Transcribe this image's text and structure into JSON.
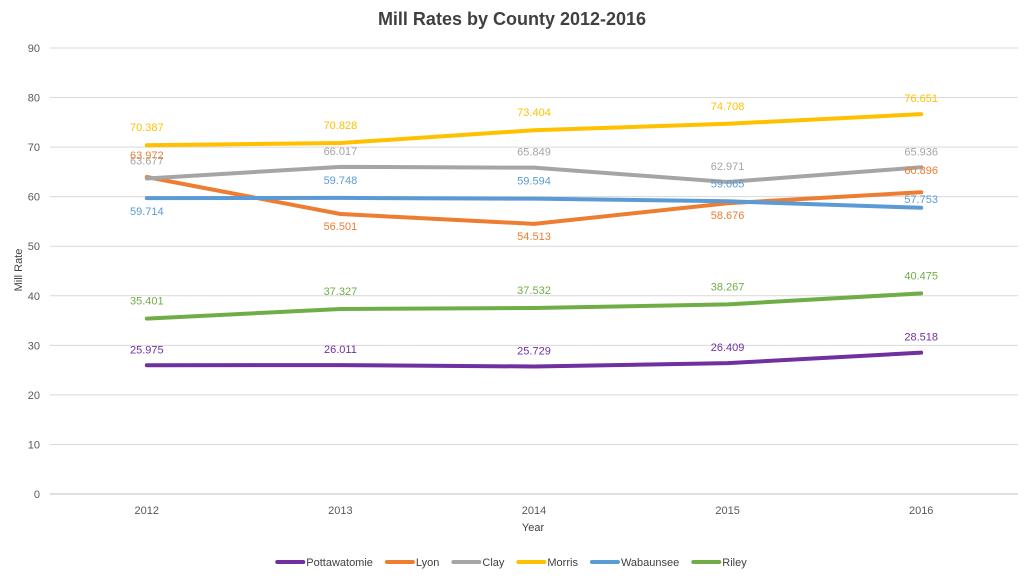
{
  "chart_data": {
    "type": "line",
    "title": "Mill Rates by County 2012-2016",
    "xlabel": "Year",
    "ylabel": "Mill Rate",
    "categories": [
      "2012",
      "2013",
      "2014",
      "2015",
      "2016"
    ],
    "ylim": [
      0,
      90
    ],
    "ytick_step": 10,
    "grid": true,
    "legend_position": "bottom",
    "series": [
      {
        "name": "Pottawatomie",
        "color": "#7030A0",
        "values": [
          25.975,
          26.011,
          25.729,
          26.409,
          28.518
        ],
        "labels": [
          "25.975",
          "26.011",
          "25.729",
          "26.409",
          "28.518"
        ]
      },
      {
        "name": "Lyon",
        "color": "#ED7D31",
        "values": [
          63.972,
          56.501,
          54.513,
          58.676,
          60.896
        ],
        "labels": [
          "63.972",
          "56.501",
          "54.513",
          "58.676",
          "60.896"
        ]
      },
      {
        "name": "Clay",
        "color": "#A5A5A5",
        "values": [
          63.677,
          66.017,
          65.849,
          62.971,
          65.936
        ],
        "labels": [
          "63.677",
          "66.017",
          "65.849",
          "62.971",
          "65.936"
        ]
      },
      {
        "name": "Morris",
        "color": "#FFC000",
        "values": [
          70.387,
          70.828,
          73.404,
          74.708,
          76.651
        ],
        "labels": [
          "70.387",
          "70.828",
          "73.404",
          "74.708",
          "76.651"
        ]
      },
      {
        "name": "Wabaunsee",
        "color": "#5B9BD5",
        "values": [
          59.714,
          59.748,
          59.594,
          59.065,
          57.753
        ],
        "labels": [
          "59.714",
          "59.748",
          "59.594",
          "59.065",
          "57.753"
        ]
      },
      {
        "name": "Riley",
        "color": "#70AD47",
        "values": [
          35.401,
          37.327,
          37.532,
          38.267,
          40.475
        ],
        "labels": [
          "35.401",
          "37.327",
          "37.532",
          "38.267",
          "40.475"
        ]
      }
    ]
  }
}
